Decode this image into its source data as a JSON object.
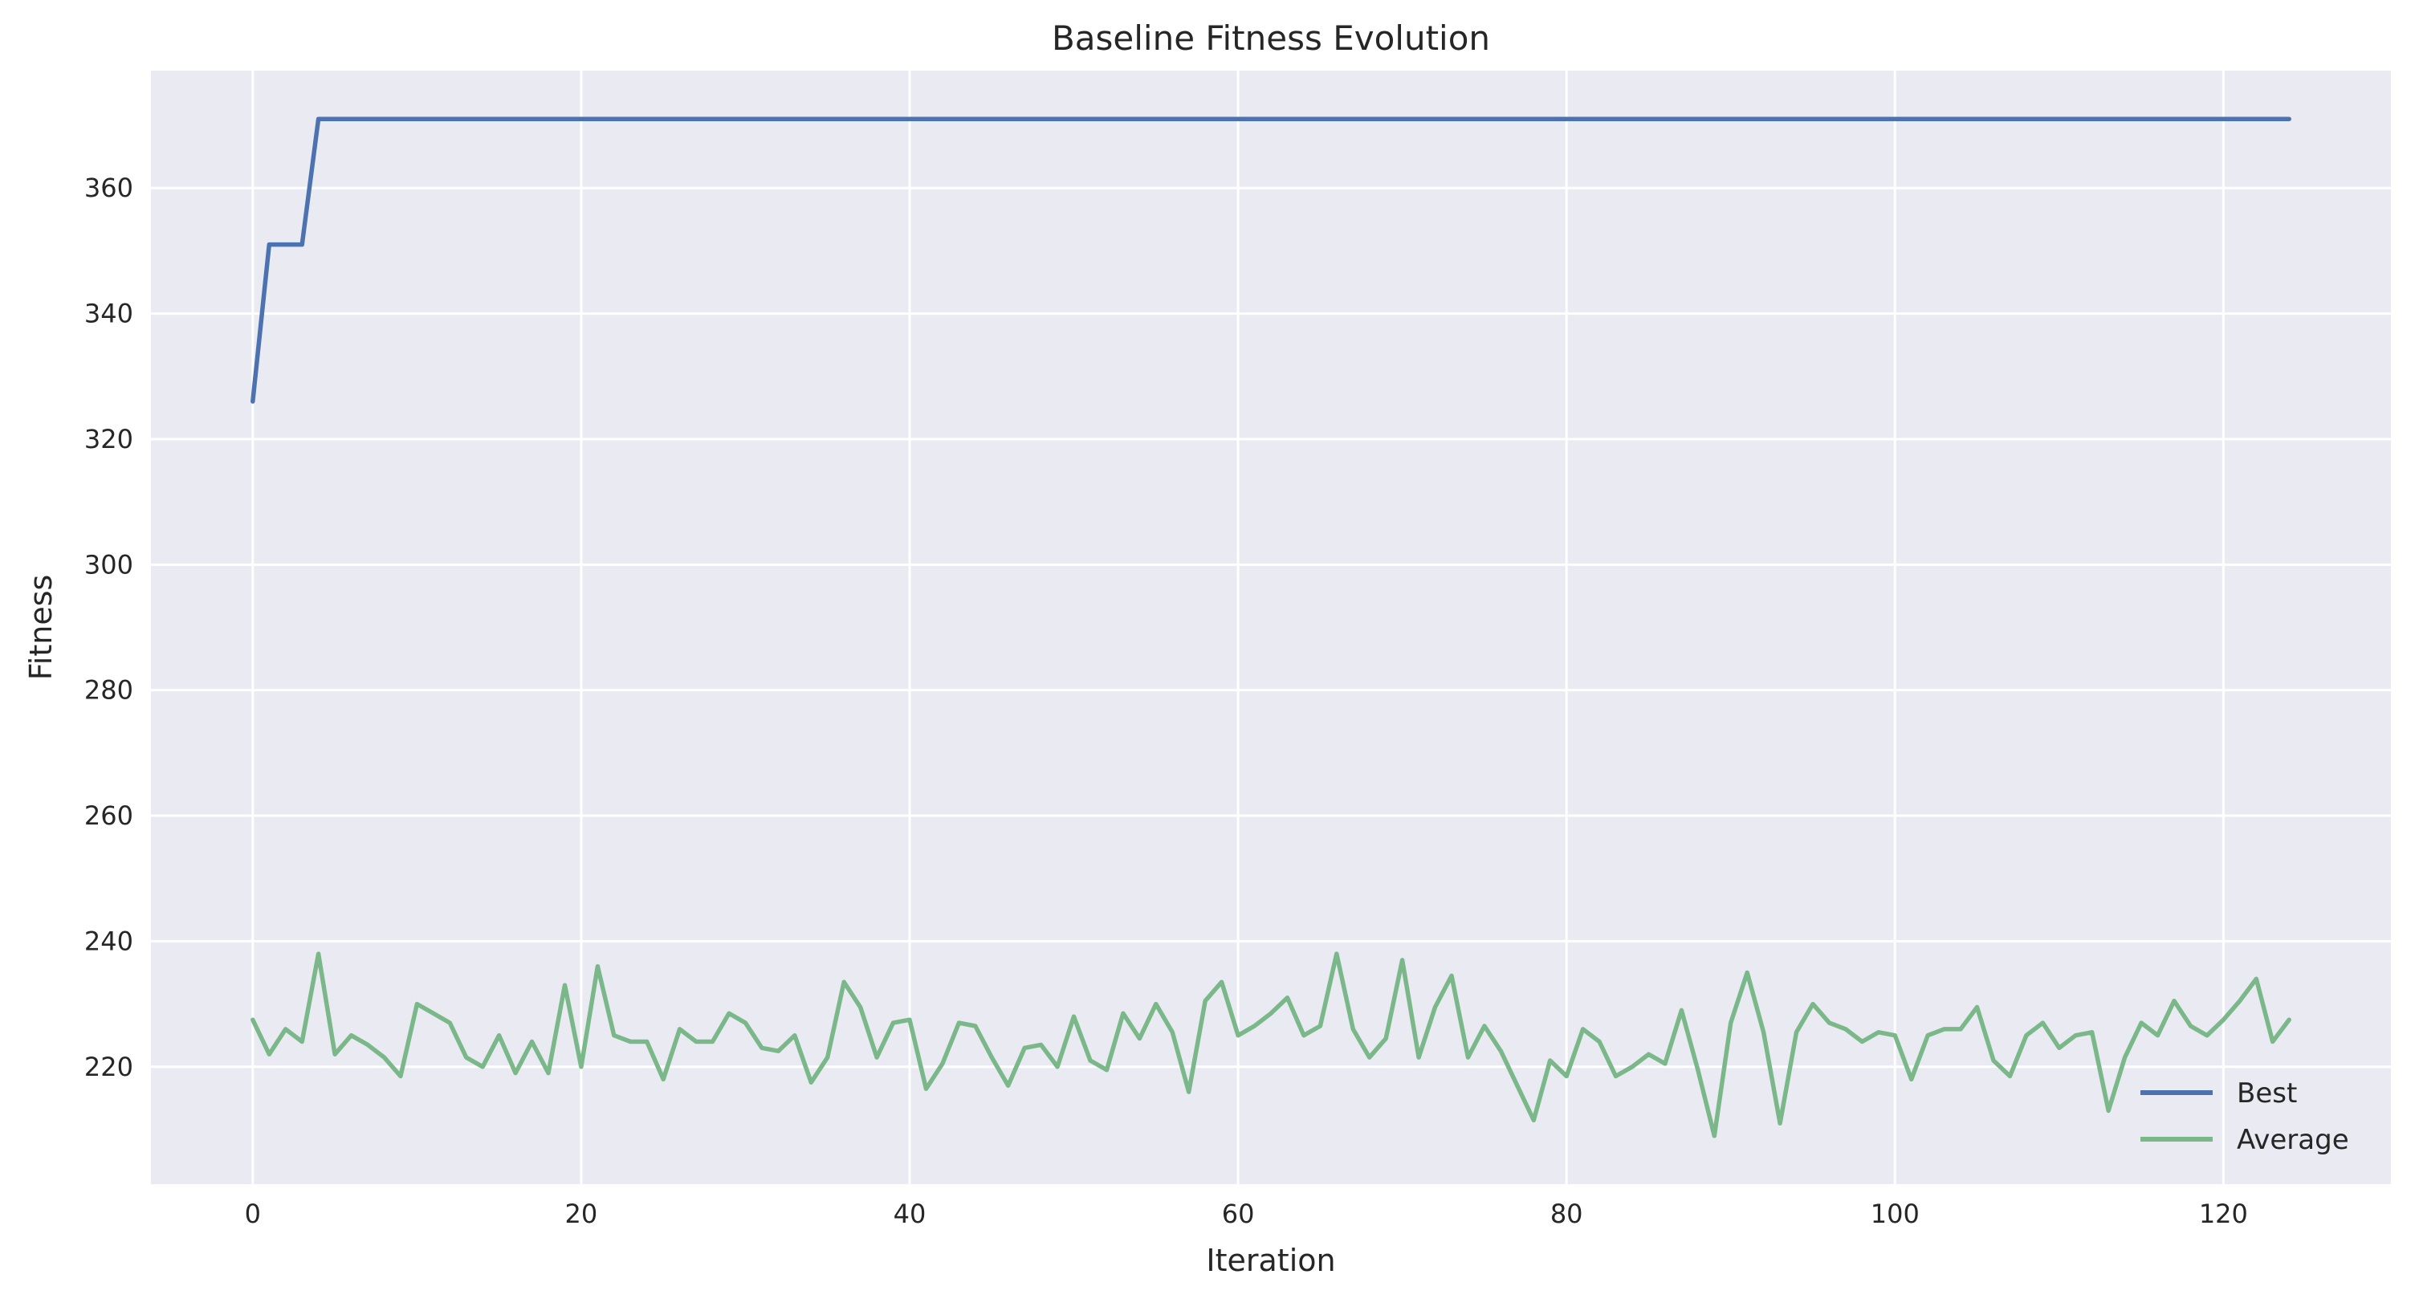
{
  "chart_data": {
    "type": "line",
    "title": "Baseline Fitness Evolution",
    "xlabel": "Iteration",
    "ylabel": "Fitness",
    "xlim": [
      -6.2,
      130.2
    ],
    "ylim": [
      201.3,
      378.7
    ],
    "xticks": [
      0,
      20,
      40,
      60,
      80,
      100,
      120
    ],
    "yticks": [
      220,
      240,
      260,
      280,
      300,
      320,
      340,
      360
    ],
    "grid": true,
    "legend_position": "lower-right",
    "series": [
      {
        "name": "Best",
        "color": "#4c72b0",
        "x": [
          0,
          1,
          2,
          3,
          4,
          124
        ],
        "y": [
          326,
          351,
          351,
          351,
          371,
          371
        ]
      },
      {
        "name": "Average",
        "color": "#7ab88a",
        "x": [
          0,
          1,
          2,
          3,
          4,
          5,
          6,
          7,
          8,
          9,
          10,
          11,
          12,
          13,
          14,
          15,
          16,
          17,
          18,
          19,
          20,
          21,
          22,
          23,
          24,
          25,
          26,
          27,
          28,
          29,
          30,
          31,
          32,
          33,
          34,
          35,
          36,
          37,
          38,
          39,
          40,
          41,
          42,
          43,
          44,
          45,
          46,
          47,
          48,
          49,
          50,
          51,
          52,
          53,
          54,
          55,
          56,
          57,
          58,
          59,
          60,
          61,
          62,
          63,
          64,
          65,
          66,
          67,
          68,
          69,
          70,
          71,
          72,
          73,
          74,
          75,
          76,
          77,
          78,
          79,
          80,
          81,
          82,
          83,
          84,
          85,
          86,
          87,
          88,
          89,
          90,
          91,
          92,
          93,
          94,
          95,
          96,
          97,
          98,
          99,
          100,
          101,
          102,
          103,
          104,
          105,
          106,
          107,
          108,
          109,
          110,
          111,
          112,
          113,
          114,
          115,
          116,
          117,
          118,
          119,
          120,
          121,
          122,
          123,
          124
        ],
        "y": [
          227.5,
          222,
          226,
          224,
          238,
          222,
          225,
          223.5,
          221.5,
          218.5,
          230,
          228.5,
          227,
          221.5,
          220,
          225,
          219,
          224,
          219,
          233,
          220,
          236,
          225,
          224,
          224,
          218,
          226,
          224,
          224,
          228.5,
          227,
          223,
          222.5,
          225,
          217.5,
          221.5,
          233.5,
          229.5,
          221.5,
          227,
          227.5,
          216.5,
          220.5,
          227,
          226.5,
          221.5,
          217,
          223,
          223.5,
          220,
          228,
          221,
          219.5,
          228.5,
          224.5,
          230,
          225.5,
          216,
          230.5,
          233.5,
          225,
          226.5,
          228.5,
          231,
          225,
          226.5,
          238,
          226,
          221.5,
          224.5,
          237,
          221.5,
          229.5,
          234.5,
          221.5,
          226.5,
          222.5,
          217,
          211.5,
          221,
          218.5,
          226,
          224,
          218.5,
          220,
          222,
          220.5,
          229,
          219.5,
          209,
          227,
          235,
          225.5,
          211,
          225.5,
          230,
          227,
          226,
          224,
          225.5,
          225,
          218,
          225,
          226,
          226,
          229.5,
          221,
          218.5,
          225,
          227,
          223,
          225,
          225.5,
          213,
          221.5,
          227,
          225,
          230.5,
          226.5,
          225,
          227.5,
          230.5,
          234,
          224,
          227.5
        ]
      }
    ]
  }
}
